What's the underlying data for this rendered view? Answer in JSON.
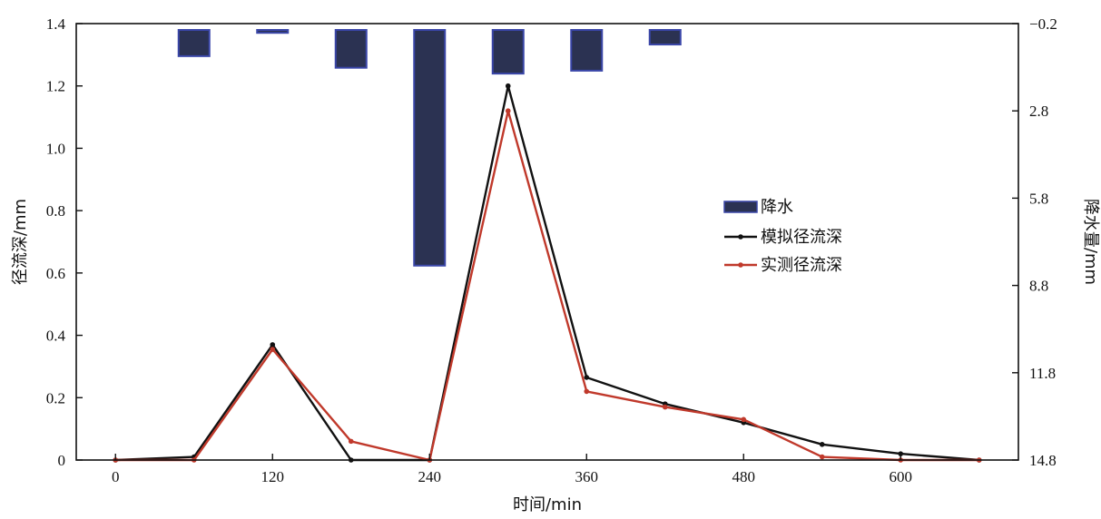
{
  "chart_data": {
    "type": "bar+line",
    "xlabel": "时间/min",
    "ylabel_left": "径流深/mm",
    "ylabel_right": "降水量/mm",
    "xlim": [
      -30,
      690
    ],
    "x_ticks": [
      0,
      120,
      240,
      360,
      480,
      600
    ],
    "x_tick_labels": [
      "0",
      "120",
      "240",
      "360",
      "480",
      "600"
    ],
    "ylim_left": [
      0,
      1.4
    ],
    "y_ticks_left": [
      0,
      0.2,
      0.4,
      0.6,
      0.8,
      1.0,
      1.2,
      1.4
    ],
    "y_tick_labels_left": [
      "0",
      "0.2",
      "0.4",
      "0.6",
      "0.8",
      "1.0",
      "1.2",
      "1.4"
    ],
    "ylim_right": [
      -0.2,
      14.8
    ],
    "right_axis_inverted": true,
    "y_ticks_right": [
      -0.2,
      2.8,
      5.8,
      8.8,
      11.8,
      14.8
    ],
    "y_tick_labels_right": [
      "−0.2",
      "2.8",
      "5.8",
      "8.8",
      "11.8",
      "14.8"
    ],
    "legend_position": "center-right",
    "series": [
      {
        "name": "降水",
        "kind": "bar",
        "axis": "right",
        "color": "#2b3252",
        "edge_color": "#3a46a8",
        "x": [
          60,
          120,
          180,
          240,
          300,
          360,
          420
        ],
        "values": [
          0.9,
          0.1,
          1.3,
          8.1,
          1.5,
          1.4,
          0.5
        ]
      },
      {
        "name": "模拟径流深",
        "kind": "line",
        "axis": "left",
        "color": "#111111",
        "marker": "circle",
        "x": [
          0,
          60,
          120,
          180,
          240,
          300,
          360,
          420,
          480,
          540,
          600,
          660
        ],
        "values": [
          0,
          0.01,
          0.37,
          0,
          0,
          1.2,
          0.265,
          0.18,
          0.12,
          0.05,
          0.02,
          0
        ]
      },
      {
        "name": "实测径流深",
        "kind": "line",
        "axis": "left",
        "color": "#c0392b",
        "marker": "circle",
        "x": [
          0,
          60,
          120,
          180,
          240,
          300,
          360,
          420,
          480,
          540,
          600,
          660
        ],
        "values": [
          0,
          0,
          0.355,
          0.06,
          0,
          1.12,
          0.22,
          0.17,
          0.13,
          0.01,
          0,
          0
        ]
      }
    ]
  }
}
